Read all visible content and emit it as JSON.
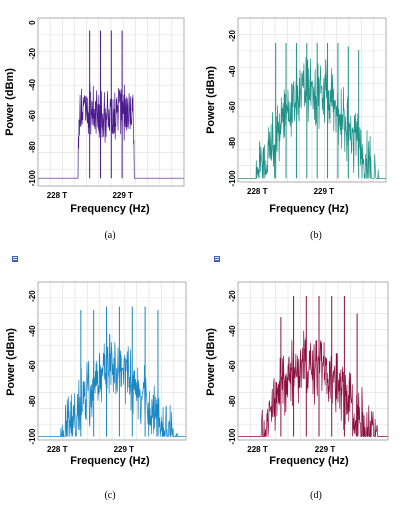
{
  "chart_data": [
    {
      "type": "line",
      "caption": "(a)",
      "color": "#4b1a8c",
      "xlabel": "Frequency (Hz)",
      "ylabel": "Power (dBm)",
      "x_ticks": [
        "228 T",
        "229 T"
      ],
      "y_ticks": [
        "0",
        "-20",
        "-40",
        "-60",
        "-80",
        "-100"
      ],
      "ylim": [
        -105,
        3
      ],
      "grid": true,
      "carrier_peaks_dBm": [
        -5,
        -5,
        -5,
        -5
      ],
      "floor_dBm": -100,
      "band_envelope": [
        [
          0.27,
          -100
        ],
        [
          0.28,
          -48
        ],
        [
          0.65,
          -48
        ],
        [
          0.66,
          -100
        ]
      ]
    },
    {
      "type": "line",
      "caption": "(b)",
      "color": "#1f9188",
      "xlabel": "Frequency (Hz)",
      "ylabel": "Power (dBm)",
      "x_ticks": [
        "228 T",
        "229 T"
      ],
      "y_ticks": [
        "-20",
        "-40",
        "-60",
        "-80",
        "-100"
      ],
      "ylim": [
        -102,
        -10
      ],
      "grid": true,
      "carrier_peaks_dBm": [
        -24,
        -24,
        -24,
        -24,
        -24,
        -24,
        -24,
        -26,
        -28
      ],
      "floor_dBm": -100,
      "band_envelope": [
        [
          0.12,
          -88
        ],
        [
          0.3,
          -60
        ],
        [
          0.45,
          -40
        ],
        [
          0.6,
          -45
        ],
        [
          0.8,
          -70
        ],
        [
          0.95,
          -95
        ]
      ]
    },
    {
      "type": "line",
      "caption": "(c)",
      "color": "#1a86c4",
      "xlabel": "Frequency (Hz)",
      "ylabel": "Power (dBm)",
      "x_ticks": [
        "228 T",
        "229 T"
      ],
      "y_ticks": [
        "-20",
        "-40",
        "-60",
        "-80",
        "-100"
      ],
      "ylim": [
        -102,
        -12
      ],
      "grid": true,
      "carrier_peaks_dBm": [
        -28,
        -28,
        -26,
        -26,
        -26,
        -26,
        -28
      ],
      "floor_dBm": -100,
      "band_envelope": [
        [
          0.15,
          -92
        ],
        [
          0.3,
          -70
        ],
        [
          0.45,
          -52
        ],
        [
          0.6,
          -55
        ],
        [
          0.8,
          -80
        ],
        [
          0.95,
          -98
        ]
      ]
    },
    {
      "type": "line",
      "caption": "(d)",
      "color": "#8a0f3d",
      "xlabel": "Frequency (Hz)",
      "ylabel": "Power (dBm)",
      "x_ticks": [
        "228 T",
        "229 T"
      ],
      "y_ticks": [
        "-20",
        "-40",
        "-60",
        "-80",
        "-100"
      ],
      "ylim": [
        -102,
        -12
      ],
      "grid": true,
      "carrier_peaks_dBm": [
        -32,
        -20,
        -20,
        -20,
        -20,
        -20,
        -30
      ],
      "floor_dBm": -100,
      "band_envelope": [
        [
          0.15,
          -95
        ],
        [
          0.3,
          -60
        ],
        [
          0.45,
          -50
        ],
        [
          0.6,
          -52
        ],
        [
          0.8,
          -80
        ],
        [
          0.93,
          -98
        ]
      ]
    }
  ]
}
